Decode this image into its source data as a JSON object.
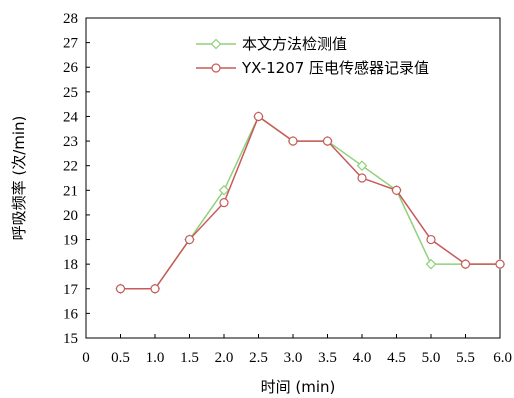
{
  "chart_data": {
    "type": "line",
    "title": "",
    "xlabel": "时间 (min)",
    "ylabel": "呼吸频率 (次/min)",
    "xlim": [
      0,
      6.0
    ],
    "ylim": [
      15,
      28
    ],
    "x_ticks": [
      "0",
      "0.5",
      "1.0",
      "1.5",
      "2.0",
      "2.5",
      "3.0",
      "3.5",
      "4.0",
      "4.5",
      "5.0",
      "5.5",
      "6.0"
    ],
    "y_ticks": [
      "15",
      "16",
      "17",
      "18",
      "19",
      "20",
      "21",
      "22",
      "23",
      "24",
      "25",
      "26",
      "27",
      "28"
    ],
    "grid": false,
    "legend_position": "top-right",
    "series": [
      {
        "name": "本文方法检测值",
        "color": "#8fd17a",
        "marker": "diamond",
        "x": [
          0.5,
          1.0,
          1.5,
          2.0,
          2.5,
          3.0,
          3.5,
          4.0,
          4.5,
          5.0,
          5.5,
          6.0
        ],
        "y": [
          17,
          17,
          19,
          21,
          24,
          23,
          23,
          22,
          21,
          18,
          18,
          18
        ]
      },
      {
        "name": "YX-1207 压电传感器记录值",
        "color": "#c85a5a",
        "marker": "circle",
        "x": [
          0.5,
          1.0,
          1.5,
          2.0,
          2.5,
          3.0,
          3.5,
          4.0,
          4.5,
          5.0,
          5.5,
          6.0
        ],
        "y": [
          17,
          17,
          19,
          20.5,
          24,
          23,
          23,
          21.5,
          21,
          19,
          18,
          18
        ]
      }
    ]
  }
}
